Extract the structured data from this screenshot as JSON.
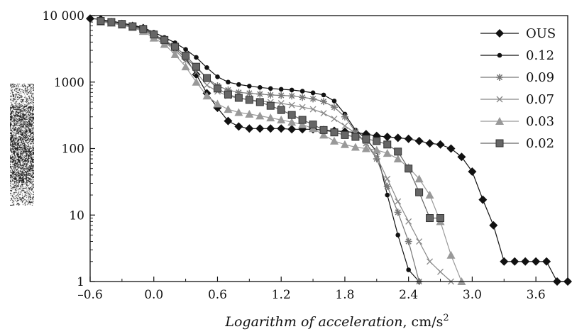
{
  "chart_data": {
    "type": "line",
    "xlabel": "Logarithm of acceleration, cm/s²",
    "xlabel_main": "Logarithm of acceleration",
    "xlabel_unit": ", cm/s",
    "xlabel_sup": "2",
    "ylabel": "",
    "xlim": [
      -0.6,
      3.9
    ],
    "ylim": [
      1,
      10000
    ],
    "y_scale": "log",
    "x_ticks": [
      -0.6,
      0.0,
      0.6,
      1.2,
      1.8,
      2.4,
      3.0,
      3.6
    ],
    "x_tick_labels": [
      "–0.6",
      "0.0",
      "0.6",
      "1.2",
      "1.8",
      "2.4",
      "3.0",
      "3.6"
    ],
    "y_ticks": [
      1,
      10,
      100,
      1000,
      10000
    ],
    "y_tick_labels": [
      "1",
      "10",
      "100",
      "1000",
      "10 000"
    ],
    "grid": false,
    "legend_position": "top-right",
    "series": [
      {
        "name": "OUS",
        "color": "#111111",
        "marker": "diamond",
        "x": [
          -0.6,
          -0.5,
          -0.4,
          -0.3,
          -0.2,
          -0.1,
          0.0,
          0.1,
          0.2,
          0.3,
          0.4,
          0.5,
          0.6,
          0.7,
          0.8,
          0.9,
          1.0,
          1.1,
          1.2,
          1.3,
          1.4,
          1.5,
          1.6,
          1.7,
          1.8,
          1.9,
          2.0,
          2.1,
          2.2,
          2.3,
          2.4,
          2.5,
          2.6,
          2.7,
          2.8,
          2.9,
          3.0,
          3.1,
          3.2,
          3.3,
          3.4,
          3.5,
          3.6,
          3.7,
          3.8,
          3.9
        ],
        "y": [
          9000,
          8800,
          8000,
          7500,
          7000,
          6500,
          5200,
          4200,
          3200,
          2300,
          1300,
          680,
          410,
          260,
          215,
          200,
          200,
          200,
          200,
          195,
          195,
          195,
          190,
          185,
          180,
          175,
          165,
          155,
          150,
          145,
          140,
          130,
          120,
          115,
          100,
          75,
          45,
          17,
          7,
          2,
          2,
          2,
          2,
          2,
          1,
          1
        ]
      },
      {
        "name": "0.12",
        "color": "#111111",
        "marker": "circle",
        "x": [
          -0.5,
          -0.4,
          -0.3,
          -0.2,
          -0.1,
          0.0,
          0.1,
          0.2,
          0.3,
          0.4,
          0.5,
          0.6,
          0.7,
          0.8,
          0.9,
          1.0,
          1.1,
          1.2,
          1.3,
          1.4,
          1.5,
          1.6,
          1.7,
          1.8,
          1.9,
          2.0,
          2.1,
          2.2,
          2.3,
          2.4,
          2.5
        ],
        "y": [
          8600,
          8300,
          7700,
          7200,
          6600,
          5600,
          4700,
          3900,
          3100,
          2350,
          1650,
          1200,
          1000,
          920,
          870,
          830,
          800,
          780,
          760,
          730,
          690,
          640,
          520,
          330,
          190,
          140,
          90,
          20,
          5,
          1.5,
          1
        ]
      },
      {
        "name": "0.09",
        "color": "#777777",
        "marker": "asterisk",
        "x": [
          -0.5,
          -0.4,
          -0.3,
          -0.2,
          -0.1,
          0.0,
          0.1,
          0.2,
          0.3,
          0.4,
          0.5,
          0.6,
          0.7,
          0.8,
          0.9,
          1.0,
          1.1,
          1.2,
          1.3,
          1.4,
          1.5,
          1.6,
          1.7,
          1.8,
          1.9,
          2.0,
          2.1,
          2.2,
          2.3,
          2.4,
          2.5
        ],
        "y": [
          8400,
          8000,
          7400,
          6800,
          6100,
          5000,
          4100,
          3200,
          2300,
          1650,
          1150,
          880,
          760,
          700,
          680,
          660,
          640,
          630,
          620,
          590,
          560,
          510,
          420,
          300,
          180,
          120,
          70,
          27,
          11,
          4,
          1
        ]
      },
      {
        "name": "0.07",
        "color": "#888888",
        "marker": "cross",
        "x": [
          -0.5,
          -0.4,
          -0.3,
          -0.2,
          -0.1,
          0.0,
          0.1,
          0.2,
          0.3,
          0.4,
          0.5,
          0.6,
          0.7,
          0.8,
          0.9,
          1.0,
          1.1,
          1.2,
          1.3,
          1.4,
          1.5,
          1.6,
          1.7,
          1.8,
          1.9,
          2.0,
          2.1,
          2.2,
          2.3,
          2.4,
          2.5,
          2.6,
          2.7,
          2.8
        ],
        "y": [
          8200,
          7900,
          7300,
          6700,
          6000,
          4900,
          4000,
          3000,
          2100,
          1400,
          900,
          720,
          620,
          570,
          540,
          520,
          500,
          480,
          450,
          420,
          390,
          340,
          280,
          220,
          170,
          120,
          75,
          35,
          16,
          8,
          4,
          2,
          1.4,
          1
        ]
      },
      {
        "name": "0.03",
        "color": "#999999",
        "marker": "triangle",
        "x": [
          -0.5,
          -0.4,
          -0.3,
          -0.2,
          -0.1,
          0.0,
          0.1,
          0.2,
          0.3,
          0.4,
          0.5,
          0.6,
          0.7,
          0.8,
          0.9,
          1.0,
          1.1,
          1.2,
          1.3,
          1.4,
          1.5,
          1.6,
          1.7,
          1.8,
          1.9,
          2.0,
          2.1,
          2.2,
          2.3,
          2.4,
          2.5,
          2.6,
          2.7,
          2.8,
          2.9
        ],
        "y": [
          8000,
          7700,
          7200,
          6600,
          5800,
          4600,
          3700,
          2600,
          1700,
          1000,
          620,
          470,
          390,
          350,
          330,
          310,
          290,
          270,
          250,
          230,
          200,
          160,
          130,
          115,
          105,
          100,
          95,
          85,
          70,
          52,
          35,
          20,
          8,
          2.5,
          1
        ]
      },
      {
        "name": "0.02",
        "color": "#666666",
        "marker": "square",
        "x": [
          -0.5,
          -0.4,
          -0.3,
          -0.2,
          -0.1,
          0.0,
          0.1,
          0.2,
          0.3,
          0.4,
          0.5,
          0.6,
          0.7,
          0.8,
          0.9,
          1.0,
          1.1,
          1.2,
          1.3,
          1.4,
          1.5,
          1.6,
          1.7,
          1.8,
          1.9,
          2.0,
          2.1,
          2.2,
          2.3,
          2.4,
          2.5,
          2.6,
          2.7
        ],
        "y": [
          8300,
          8000,
          7500,
          6900,
          6300,
          5200,
          4300,
          3400,
          2500,
          1700,
          1150,
          800,
          650,
          580,
          540,
          500,
          440,
          380,
          320,
          270,
          230,
          190,
          175,
          160,
          150,
          140,
          130,
          115,
          90,
          50,
          22,
          9,
          9
        ]
      }
    ]
  }
}
